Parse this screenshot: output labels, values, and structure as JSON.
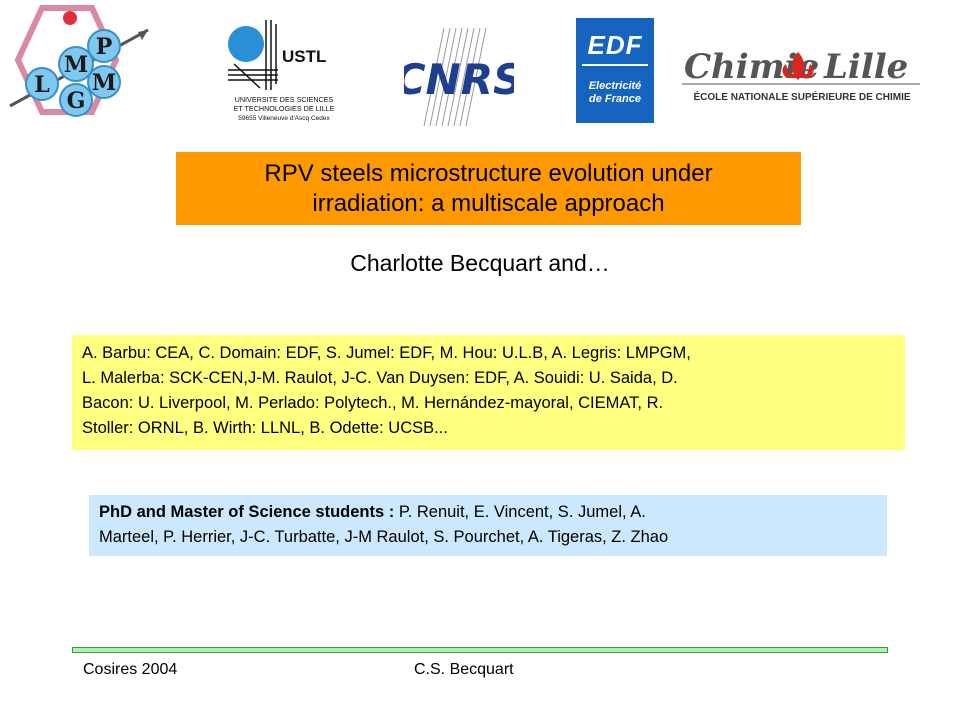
{
  "logos": {
    "lmpgm": {
      "letters": [
        "L",
        "M",
        "P",
        "M",
        "G"
      ],
      "name": "lmpgm-logo"
    },
    "ustl": {
      "abbr": "USTL",
      "line1": "UNIVERSITE DES SCIENCES",
      "line2": "ET TECHNOLOGIES DE LILLE",
      "line3": "59655 Villeneuve d'Ascq Cedex"
    },
    "cnrs": {
      "text": "CNRS"
    },
    "edf": {
      "name": "EDF",
      "sub1": "Electricité",
      "sub2": "de France",
      "color": "#1565c0"
    },
    "chimie": {
      "left": "Chimie",
      "right": "Lille",
      "subtitle": "ÉCOLE NATIONALE SUPÉRIEURE DE CHIMIE"
    }
  },
  "title": {
    "line1": "RPV steels microstructure evolution under",
    "line2": "irradiation: a multiscale approach",
    "bg": "#ff9900"
  },
  "author": "Charlotte Becquart and…",
  "collaborators": {
    "lines": [
      "A. Barbu: CEA, C. Domain: EDF, S. Jumel: EDF, M. Hou: U.L.B, A. Legris: LMPGM,",
      "L. Malerba: SCK-CEN,J-M. Raulot, J-C. Van Duysen: EDF, A. Souidi: U. Saida, D.",
      "Bacon: U. Liverpool, M. Perlado: Polytech., M. Hernández-mayoral, CIEMAT, R.",
      "Stoller: ORNL, B. Wirth: LLNL, B. Odette: UCSB..."
    ],
    "bg": "#ffff80"
  },
  "students": {
    "label": "PhD and Master of Science students :",
    "line1_rest": " P. Renuit, E. Vincent, S. Jumel, A.",
    "line2": "Marteel, P. Herrier, J-C. Turbatte, J-M Raulot, S. Pourchet, A. Tigeras, Z. Zhao",
    "bg": "#cce8ff"
  },
  "footer": {
    "left": "Cosires 2004",
    "center": "C.S. Becquart"
  }
}
